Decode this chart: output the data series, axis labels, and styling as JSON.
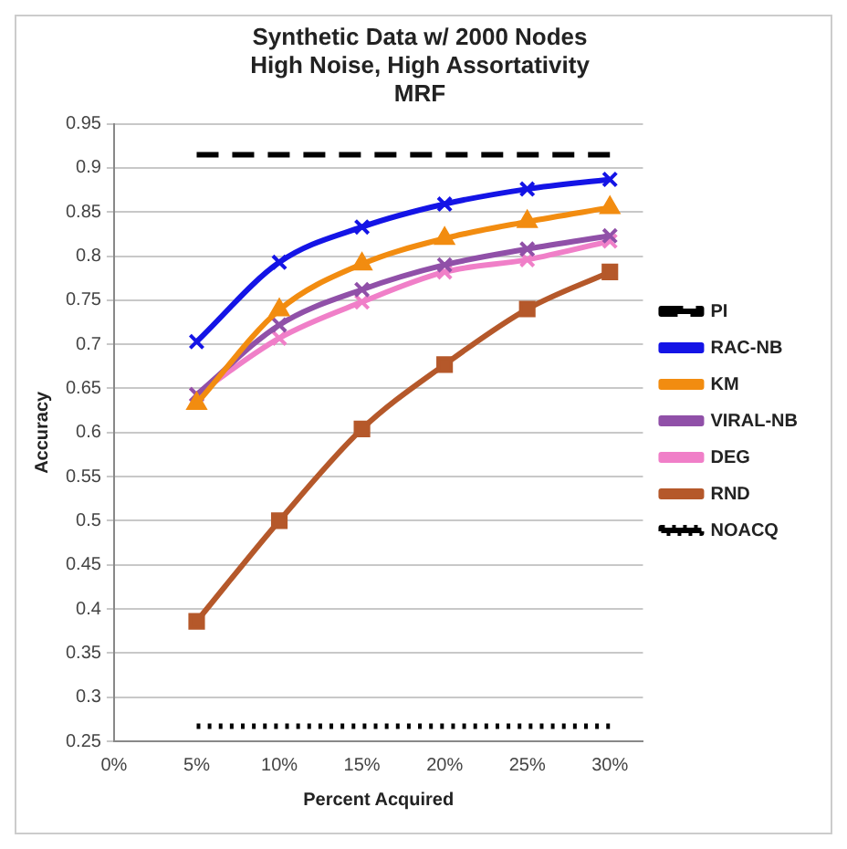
{
  "chart_data": {
    "type": "line",
    "title": "Synthetic Data w/ 2000 Nodes\nHigh Noise, High Assortativity\nMRF",
    "xlabel": "Percent Acquired",
    "ylabel": "Accuracy",
    "x": [
      5,
      10,
      15,
      20,
      25,
      30
    ],
    "xlim": [
      0,
      32
    ],
    "xticks": [
      {
        "value": 0,
        "label": "0%"
      },
      {
        "value": 5,
        "label": "5%"
      },
      {
        "value": 10,
        "label": "10%"
      },
      {
        "value": 15,
        "label": "15%"
      },
      {
        "value": 20,
        "label": "20%"
      },
      {
        "value": 25,
        "label": "25%"
      },
      {
        "value": 30,
        "label": "30%"
      }
    ],
    "ylim": [
      0.25,
      0.95
    ],
    "yticks": [
      0.25,
      0.3,
      0.35,
      0.4,
      0.45,
      0.5,
      0.55,
      0.6,
      0.65,
      0.7,
      0.75,
      0.8,
      0.85,
      0.9,
      0.95
    ],
    "grid": "y",
    "legend": "right",
    "series": [
      {
        "name": "PI",
        "color": "#000000",
        "values": [
          0.915,
          0.915,
          0.915,
          0.915,
          0.915,
          0.915
        ],
        "marker": "none",
        "line_style": "dashed"
      },
      {
        "name": "RAC-NB",
        "color": "#1414e6",
        "values": [
          0.703,
          0.793,
          0.833,
          0.859,
          0.876,
          0.887
        ],
        "marker": "cross"
      },
      {
        "name": "KM",
        "color": "#f28c10",
        "values": [
          0.633,
          0.739,
          0.791,
          0.82,
          0.839,
          0.855
        ],
        "marker": "triangle"
      },
      {
        "name": "VIRAL-NB",
        "color": "#9050a8",
        "values": [
          0.643,
          0.722,
          0.762,
          0.79,
          0.808,
          0.823
        ],
        "marker": "cross"
      },
      {
        "name": "DEG",
        "color": "#f07fc8",
        "values": [
          0.643,
          0.707,
          0.748,
          0.782,
          0.796,
          0.817
        ],
        "marker": "cross"
      },
      {
        "name": "RND",
        "color": "#b5582a",
        "values": [
          0.386,
          0.5,
          0.604,
          0.677,
          0.74,
          0.782
        ],
        "marker": "square"
      },
      {
        "name": "NOACQ",
        "color": "#000000",
        "values": [
          0.267,
          0.267,
          0.267,
          0.267,
          0.267,
          0.267
        ],
        "marker": "none",
        "line_style": "dotted"
      }
    ]
  }
}
